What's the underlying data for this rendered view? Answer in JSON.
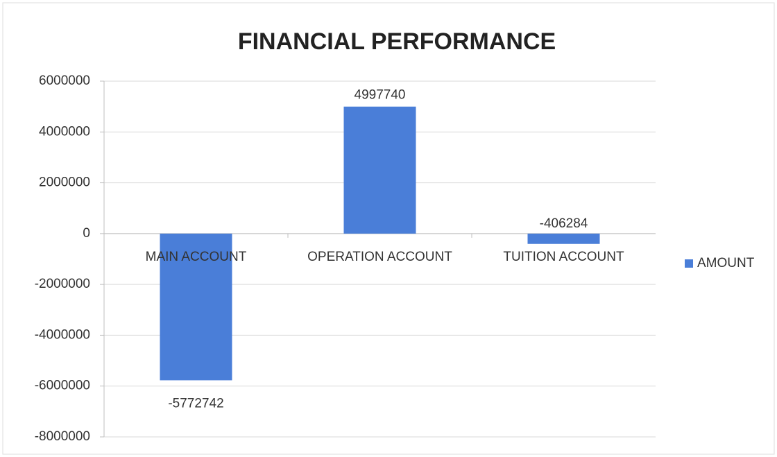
{
  "chart_data": {
    "type": "bar",
    "title": "FINANCIAL PERFORMANCE",
    "categories": [
      "MAIN ACCOUNT",
      "OPERATION ACCOUNT",
      "TUITION ACCOUNT"
    ],
    "series": [
      {
        "name": "AMOUNT",
        "color": "#4a7ed8",
        "values": [
          -5772742,
          4997740,
          -406284
        ]
      }
    ],
    "ylim": [
      -8000000,
      6000000
    ],
    "yticks": [
      -8000000,
      -6000000,
      -4000000,
      -2000000,
      0,
      2000000,
      4000000,
      6000000
    ],
    "grid": true,
    "legend": "right"
  }
}
